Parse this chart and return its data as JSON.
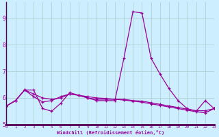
{
  "xlabel": "Windchill (Refroidissement éolien,°C)",
  "x_values": [
    0,
    1,
    2,
    3,
    4,
    5,
    6,
    7,
    8,
    9,
    10,
    11,
    12,
    13,
    14,
    15,
    16,
    17,
    18,
    19,
    20,
    21,
    22,
    23
  ],
  "line1": [
    5.7,
    5.9,
    6.3,
    6.3,
    5.6,
    5.5,
    5.8,
    6.2,
    6.1,
    6.0,
    5.9,
    5.9,
    5.9,
    7.5,
    9.25,
    9.2,
    7.5,
    6.9,
    6.35,
    5.9,
    5.6,
    5.5,
    5.9,
    5.6
  ],
  "line2": [
    5.7,
    5.9,
    6.3,
    6.05,
    5.85,
    5.9,
    6.05,
    6.15,
    6.1,
    6.0,
    5.95,
    5.95,
    5.95,
    5.95,
    5.9,
    5.88,
    5.82,
    5.76,
    5.7,
    5.64,
    5.58,
    5.52,
    5.52,
    5.6
  ],
  "line3": [
    5.7,
    5.9,
    6.3,
    6.15,
    6.0,
    5.95,
    6.0,
    6.15,
    6.1,
    6.05,
    6.0,
    5.98,
    5.95,
    5.92,
    5.88,
    5.84,
    5.78,
    5.72,
    5.66,
    5.6,
    5.54,
    5.48,
    5.44,
    5.6
  ],
  "line_color": "#990099",
  "bg_color": "#cceeff",
  "grid_color": "#aacccc",
  "axis_color": "#660066",
  "ylim": [
    5.0,
    9.6
  ],
  "yticks": [
    5,
    6,
    7,
    8,
    9
  ],
  "xlim": [
    0,
    23
  ],
  "xticks": [
    0,
    1,
    2,
    3,
    4,
    5,
    6,
    7,
    8,
    9,
    10,
    11,
    12,
    13,
    14,
    15,
    16,
    17,
    18,
    19,
    20,
    21,
    22,
    23
  ]
}
